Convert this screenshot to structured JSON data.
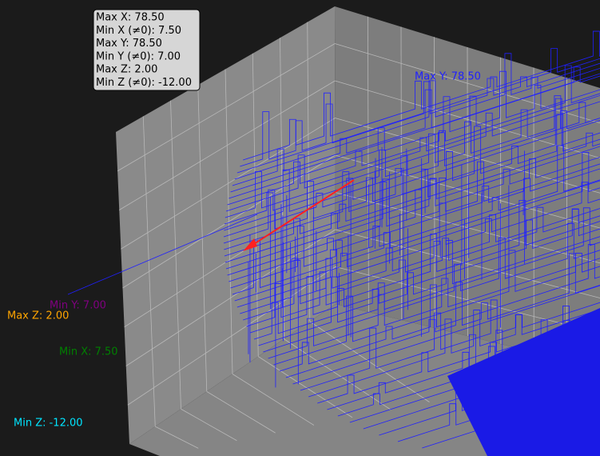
{
  "info_box": {
    "lines": [
      "Max X: 78.50",
      "Min X (≠0): 7.50",
      "Max Y: 78.50",
      "Min Y (≠0): 7.00",
      "Max Z: 2.00",
      "Min Z (≠0): -12.00"
    ]
  },
  "annotations": {
    "max_y": "Max Y: 78.50",
    "min_y": "Min Y: 7.00",
    "max_z": "Max Z: 2.00",
    "min_x": "Min X: 7.50",
    "min_z": "Min Z: -12.00"
  }
}
